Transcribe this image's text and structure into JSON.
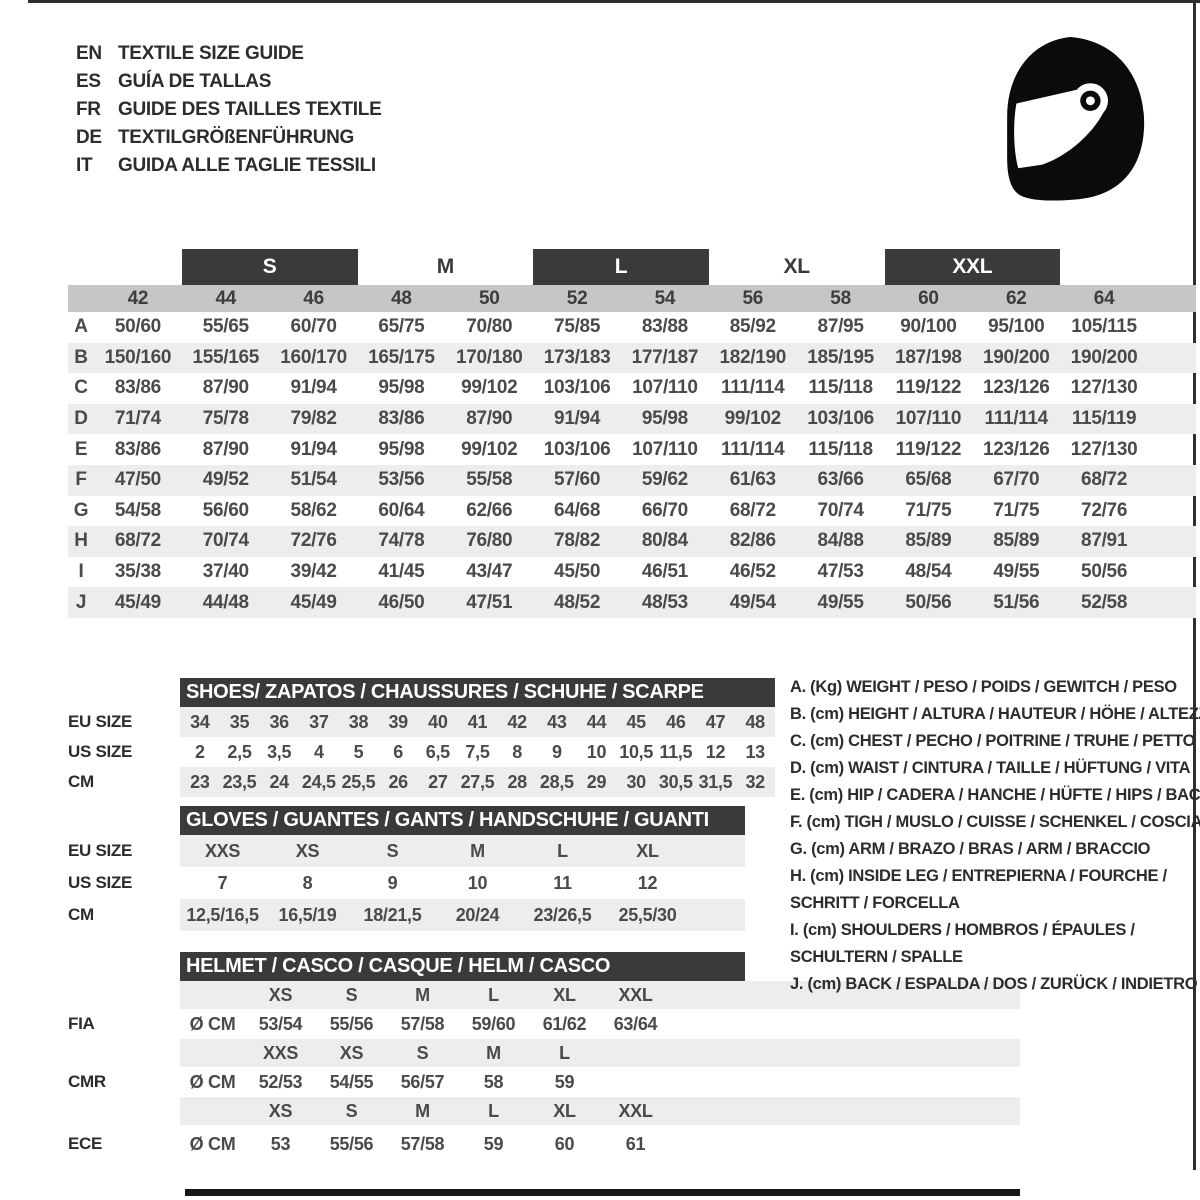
{
  "header": {
    "languages": [
      {
        "code": "EN",
        "title": "TEXTILE SIZE GUIDE"
      },
      {
        "code": "ES",
        "title": "GUÍA DE TALLAS"
      },
      {
        "code": "FR",
        "title": "GUIDE DES TAILLES TEXTILE"
      },
      {
        "code": "DE",
        "title": "TEXTILGRÖßENFÜHRUNG"
      },
      {
        "code": "IT",
        "title": "GUIDA ALLE TAGLIE TESSILI"
      }
    ],
    "icon": "helmet-icon"
  },
  "textile_table": {
    "size_groups": [
      {
        "label": "S",
        "boxed": true
      },
      {
        "label": "M",
        "boxed": false
      },
      {
        "label": "L",
        "boxed": true
      },
      {
        "label": "XL",
        "boxed": false
      },
      {
        "label": "XXL",
        "boxed": true
      }
    ],
    "columns": [
      "42",
      "44",
      "46",
      "48",
      "50",
      "52",
      "54",
      "56",
      "58",
      "60",
      "62",
      "64"
    ],
    "rows": [
      {
        "label": "A",
        "values": [
          "50/60",
          "55/65",
          "60/70",
          "65/75",
          "70/80",
          "75/85",
          "83/88",
          "85/92",
          "87/95",
          "90/100",
          "95/100",
          "105/115"
        ]
      },
      {
        "label": "B",
        "values": [
          "150/160",
          "155/165",
          "160/170",
          "165/175",
          "170/180",
          "173/183",
          "177/187",
          "182/190",
          "185/195",
          "187/198",
          "190/200",
          "190/200"
        ]
      },
      {
        "label": "C",
        "values": [
          "83/86",
          "87/90",
          "91/94",
          "95/98",
          "99/102",
          "103/106",
          "107/110",
          "111/114",
          "115/118",
          "119/122",
          "123/126",
          "127/130"
        ]
      },
      {
        "label": "D",
        "values": [
          "71/74",
          "75/78",
          "79/82",
          "83/86",
          "87/90",
          "91/94",
          "95/98",
          "99/102",
          "103/106",
          "107/110",
          "111/114",
          "115/119"
        ]
      },
      {
        "label": "E",
        "values": [
          "83/86",
          "87/90",
          "91/94",
          "95/98",
          "99/102",
          "103/106",
          "107/110",
          "111/114",
          "115/118",
          "119/122",
          "123/126",
          "127/130"
        ]
      },
      {
        "label": "F",
        "values": [
          "47/50",
          "49/52",
          "51/54",
          "53/56",
          "55/58",
          "57/60",
          "59/62",
          "61/63",
          "63/66",
          "65/68",
          "67/70",
          "68/72"
        ]
      },
      {
        "label": "G",
        "values": [
          "54/58",
          "56/60",
          "58/62",
          "60/64",
          "62/66",
          "64/68",
          "66/70",
          "68/72",
          "70/74",
          "71/75",
          "71/75",
          "72/76"
        ]
      },
      {
        "label": "H",
        "values": [
          "68/72",
          "70/74",
          "72/76",
          "74/78",
          "76/80",
          "78/82",
          "80/84",
          "82/86",
          "84/88",
          "85/89",
          "85/89",
          "87/91"
        ]
      },
      {
        "label": "I",
        "values": [
          "35/38",
          "37/40",
          "39/42",
          "41/45",
          "43/47",
          "45/50",
          "46/51",
          "46/52",
          "47/53",
          "48/54",
          "49/55",
          "50/56"
        ]
      },
      {
        "label": "J",
        "values": [
          "45/49",
          "44/48",
          "45/49",
          "46/50",
          "47/51",
          "48/52",
          "48/53",
          "49/54",
          "49/55",
          "50/56",
          "51/56",
          "52/58"
        ]
      }
    ]
  },
  "shoes_table": {
    "title": "SHOES/ ZAPATOS / CHAUSSURES / SCHUHE / SCARPE",
    "rows": [
      {
        "label": "EU SIZE",
        "shaded": true,
        "values": [
          "34",
          "35",
          "36",
          "37",
          "38",
          "39",
          "40",
          "41",
          "42",
          "43",
          "44",
          "45",
          "46",
          "47",
          "48"
        ]
      },
      {
        "label": "US SIZE",
        "shaded": false,
        "values": [
          "2",
          "2,5",
          "3,5",
          "4",
          "5",
          "6",
          "6,5",
          "7,5",
          "8",
          "9",
          "10",
          "10,5",
          "11,5",
          "12",
          "13"
        ]
      },
      {
        "label": "CM",
        "shaded": true,
        "values": [
          "23",
          "23,5",
          "24",
          "24,5",
          "25,5",
          "26",
          "27",
          "27,5",
          "28",
          "28,5",
          "29",
          "30",
          "30,5",
          "31,5",
          "32"
        ]
      }
    ]
  },
  "gloves_table": {
    "title": "GLOVES / GUANTES / GANTS / HANDSCHUHE / GUANTI",
    "rows": [
      {
        "label": "EU SIZE",
        "shaded": true,
        "values": [
          "XXS",
          "XS",
          "S",
          "M",
          "L",
          "XL"
        ]
      },
      {
        "label": "US SIZE",
        "shaded": false,
        "values": [
          "7",
          "8",
          "9",
          "10",
          "11",
          "12"
        ]
      },
      {
        "label": "CM",
        "shaded": true,
        "values": [
          "12,5/16,5",
          "16,5/19",
          "18/21,5",
          "20/24",
          "23/26,5",
          "25,5/30"
        ]
      }
    ]
  },
  "helmet_table": {
    "title": "HELMET / CASCO / CASQUE / HELM / CASCO",
    "unit_label": "Ø CM",
    "standards": [
      {
        "label": "FIA",
        "sizes": [
          "XS",
          "S",
          "M",
          "L",
          "XL",
          "XXL"
        ],
        "values": [
          "53/54",
          "55/56",
          "57/58",
          "59/60",
          "61/62",
          "63/64"
        ]
      },
      {
        "label": "CMR",
        "sizes": [
          "XXS",
          "XS",
          "S",
          "M",
          "L",
          ""
        ],
        "values": [
          "52/53",
          "54/55",
          "56/57",
          "58",
          "59",
          ""
        ]
      },
      {
        "label": "ECE",
        "sizes": [
          "XS",
          "S",
          "M",
          "L",
          "XL",
          "XXL"
        ],
        "values": [
          "53",
          "55/56",
          "57/58",
          "59",
          "60",
          "61"
        ]
      }
    ]
  },
  "legend": {
    "items": [
      {
        "key": "A",
        "lines": [
          "A. (Kg) WEIGHT / PESO / POIDS / GEWITCH / PESO"
        ]
      },
      {
        "key": "B",
        "lines": [
          "B. (cm) HEIGHT / ALTURA / HAUTEUR / HÖHE / ALTEZZA"
        ]
      },
      {
        "key": "C",
        "lines": [
          "C. (cm) CHEST / PECHO / POITRINE / TRUHE / PETTO"
        ]
      },
      {
        "key": "D",
        "lines": [
          "D. (cm) WAIST / CINTURA / TAILLE / HÜFTUNG / VITA"
        ]
      },
      {
        "key": "E",
        "lines": [
          "E. (cm) HIP / CADERA / HANCHE / HÜFTE / HIPS / BACINO"
        ]
      },
      {
        "key": "F",
        "lines": [
          "F. (cm) TIGH / MUSLO / CUISSE / SCHENKEL / COSCIA"
        ]
      },
      {
        "key": "G",
        "lines": [
          "G. (cm) ARM / BRAZO / BRAS / ARM / BRACCIO"
        ]
      },
      {
        "key": "H",
        "lines": [
          "H. (cm) INSIDE LEG / ENTREPIERNA / FOURCHE /",
          "SCHRITT / FORCELLA"
        ]
      },
      {
        "key": "I",
        "lines": [
          "I. (cm) SHOULDERS / HOMBROS / ÉPAULES /",
          "SCHULTERN / SPALLE"
        ]
      },
      {
        "key": "J",
        "lines": [
          "J. (cm) BACK / ESPALDA / DOS / ZURÜCK / INDIETRO"
        ]
      }
    ]
  },
  "colors": {
    "dark_bar": "#3a3a3a",
    "column_band": "#c6c6c6",
    "row_stripe": "#ededed",
    "text": "#4a4a4a",
    "icon": "#0b0b0b"
  }
}
